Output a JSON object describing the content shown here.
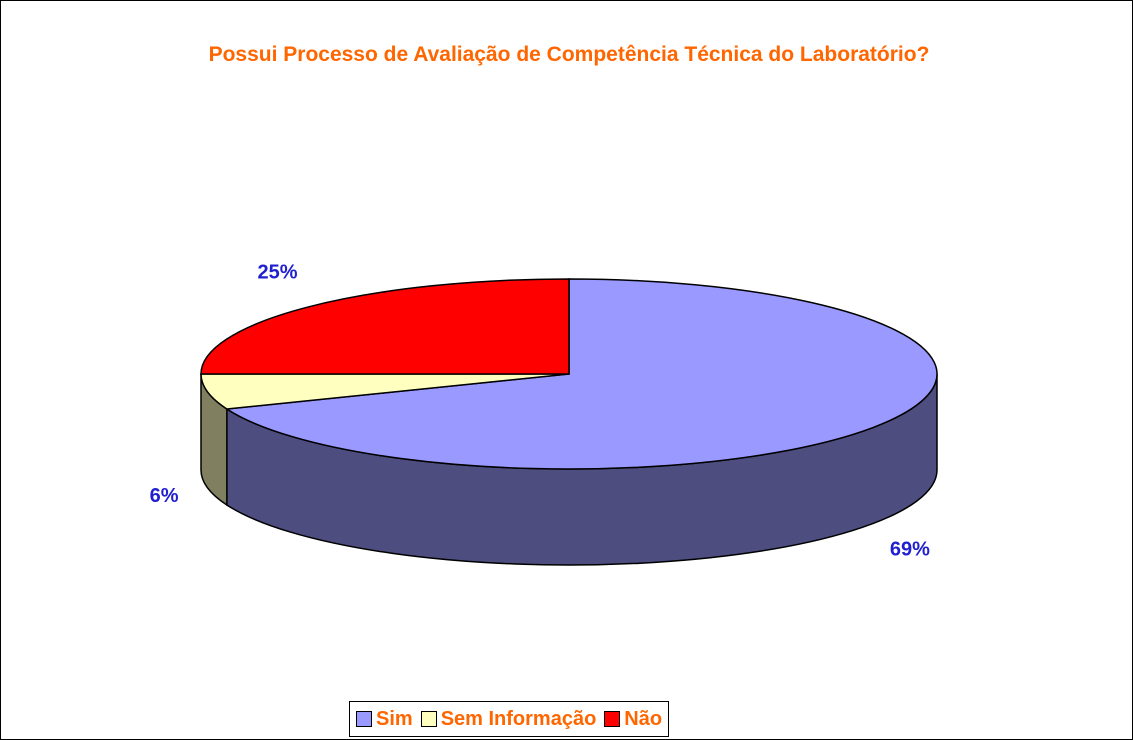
{
  "chart_data": {
    "type": "pie3d",
    "title": "Possui Processo de Avaliação de Competência Técnica do Laboratório?",
    "categories": [
      "Sim",
      "Sem Informação",
      "Não"
    ],
    "values": [
      69,
      6,
      25
    ],
    "value_labels": [
      "69%",
      "6%",
      "25%"
    ],
    "colors": [
      "#9999ff",
      "#ffffc0",
      "#ff0000"
    ],
    "legend": "bottom"
  }
}
